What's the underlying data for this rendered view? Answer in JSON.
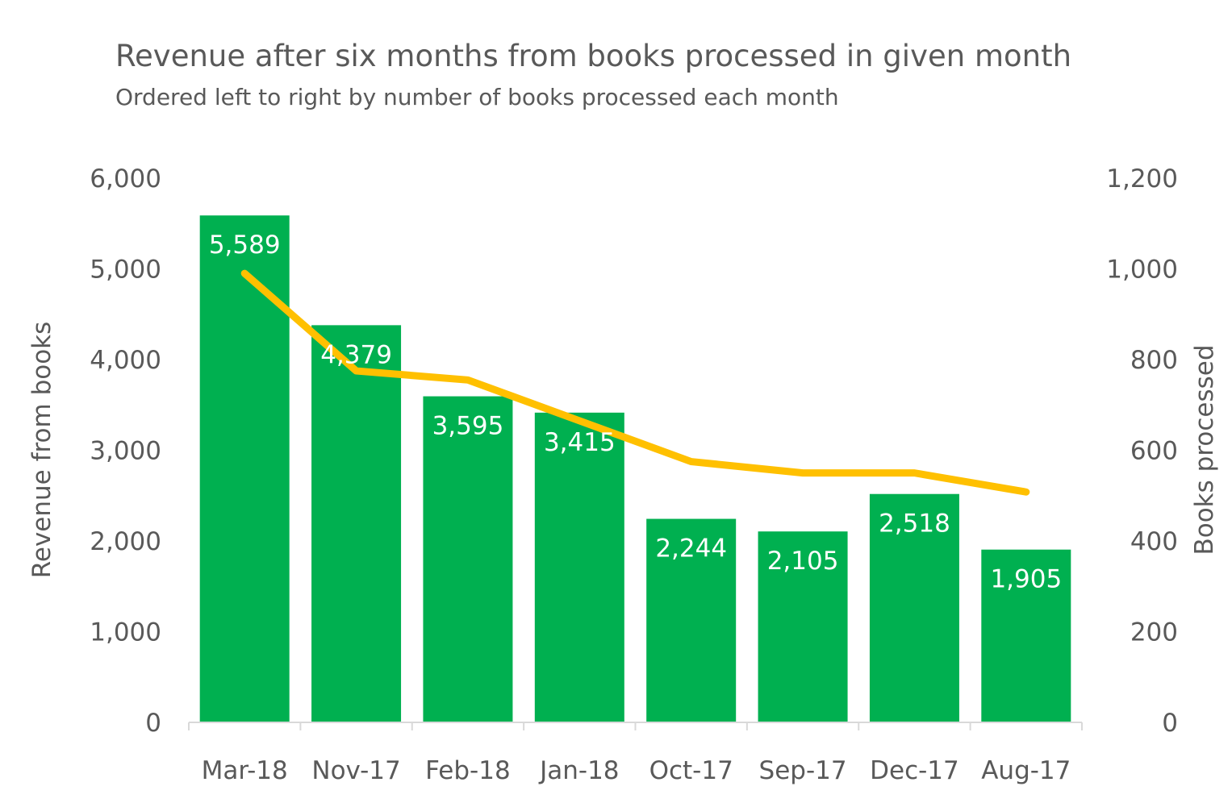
{
  "chart_data": {
    "type": "bar",
    "title": "Revenue after six months from books processed in given month",
    "subtitle": "Ordered left to right by number of books processed each month",
    "categories": [
      "Mar-18",
      "Nov-17",
      "Feb-18",
      "Jan-18",
      "Oct-17",
      "Sep-17",
      "Dec-17",
      "Aug-17"
    ],
    "series": [
      {
        "name": "Revenue from books",
        "type": "bar",
        "axis": "left",
        "values": [
          5589,
          4379,
          3595,
          3415,
          2244,
          2105,
          2518,
          1905
        ],
        "labels": [
          "5,589",
          "4,379",
          "3,595",
          "3,415",
          "2,244",
          "2,105",
          "2,518",
          "1,905"
        ],
        "color": "#00b050"
      },
      {
        "name": "Books processed",
        "type": "line",
        "axis": "right",
        "values": [
          990,
          775,
          755,
          665,
          575,
          550,
          550,
          508
        ],
        "color": "#ffc000"
      }
    ],
    "ylabel": "Revenue from books",
    "y2label": "Books processed",
    "ylim": [
      0,
      6000
    ],
    "y2lim": [
      0,
      1200
    ],
    "yticks": [
      "0",
      "1,000",
      "2,000",
      "3,000",
      "4,000",
      "5,000",
      "6,000"
    ],
    "y2ticks": [
      "0",
      "200",
      "400",
      "600",
      "800",
      "1,000",
      "1,200"
    ],
    "grid": false,
    "legend": "none"
  }
}
